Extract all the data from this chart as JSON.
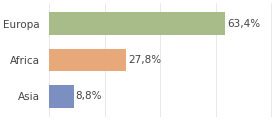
{
  "categories": [
    "Europa",
    "Africa",
    "Asia"
  ],
  "values": [
    63.4,
    27.8,
    8.8
  ],
  "labels": [
    "63,4%",
    "27,8%",
    "8,8%"
  ],
  "bar_colors": [
    "#a8bc8a",
    "#e8a97a",
    "#7b8fc0"
  ],
  "background_color": "#ffffff",
  "xlim": [
    0,
    82
  ],
  "label_fontsize": 7.5,
  "tick_fontsize": 7.5,
  "bar_height": 0.62
}
